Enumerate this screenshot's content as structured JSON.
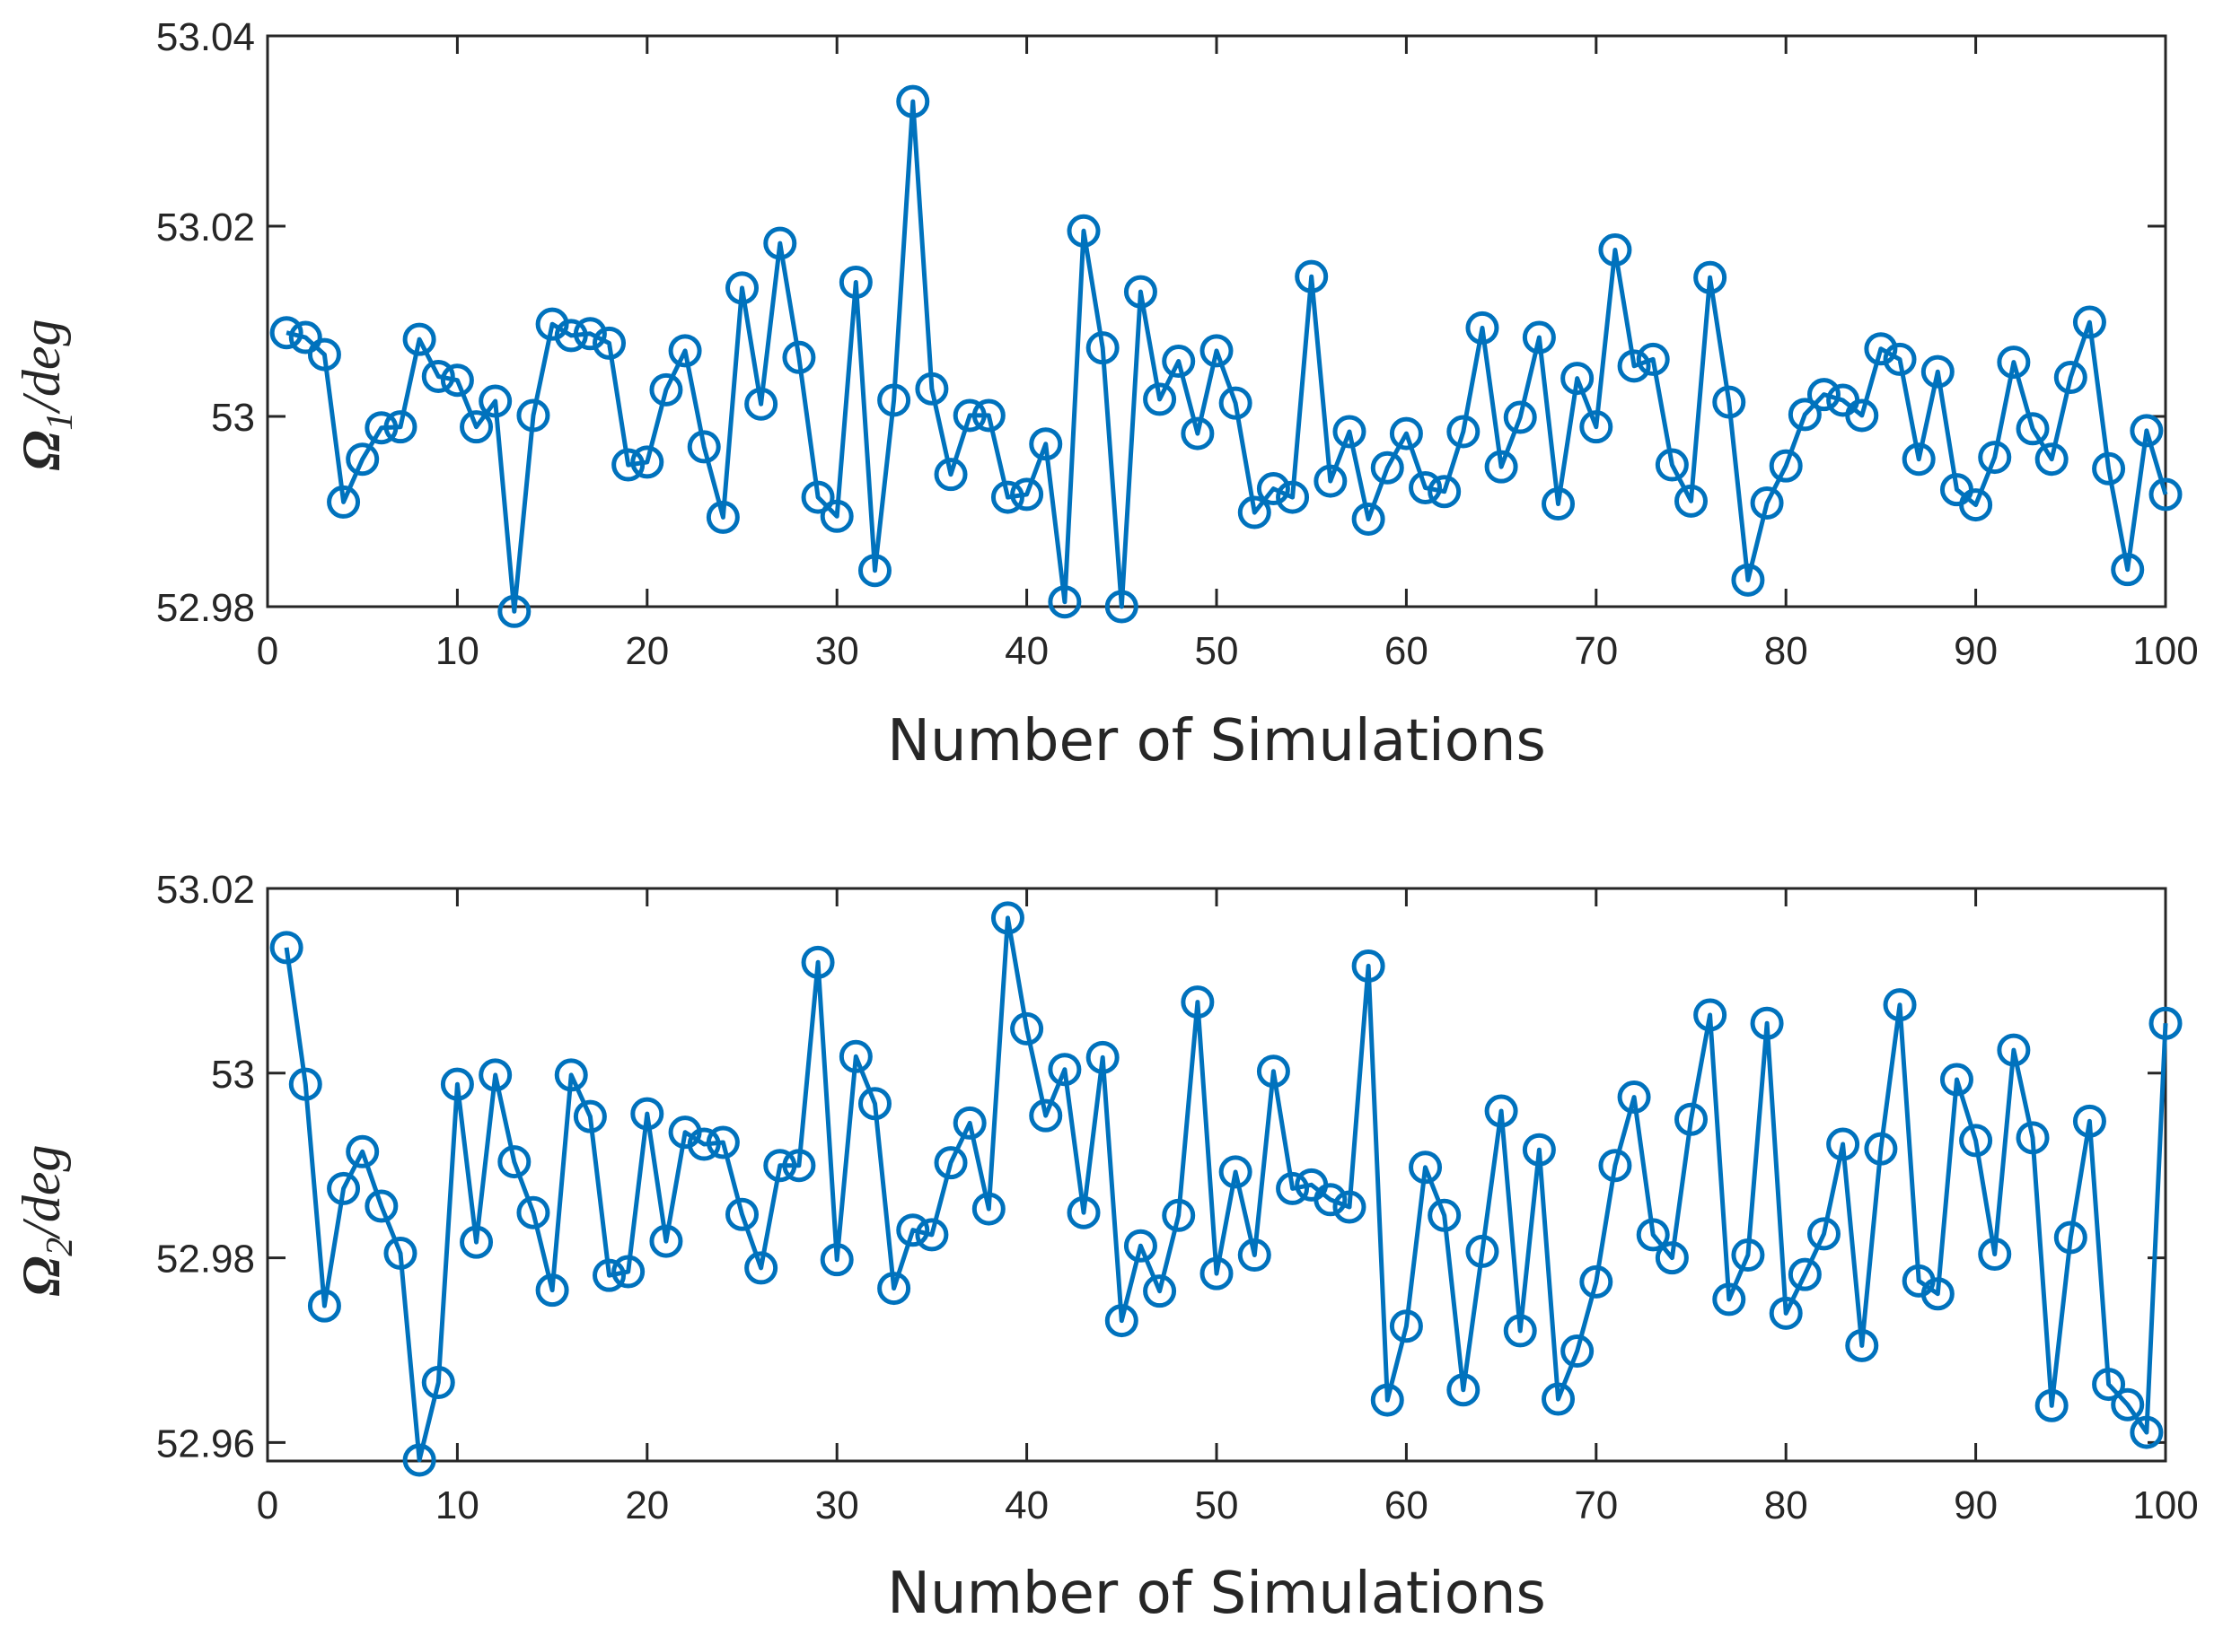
{
  "chart_data": [
    {
      "type": "line",
      "ylabel_main": "Ω",
      "ylabel_sub": "1",
      "ylabel_rest": "/deg",
      "xlabel": "Number of Simulations",
      "xlim": [
        0,
        100
      ],
      "ylim": [
        52.98,
        53.04
      ],
      "xticks": [
        0,
        10,
        20,
        30,
        40,
        50,
        60,
        70,
        80,
        90,
        100
      ],
      "yticks": [
        52.98,
        53,
        53.02,
        53.04
      ],
      "xtick_labels": [
        "0",
        "10",
        "20",
        "30",
        "40",
        "50",
        "60",
        "70",
        "80",
        "90",
        "100"
      ],
      "ytick_labels": [
        "52.98",
        "53",
        "53.02",
        "53.04"
      ],
      "color": "#0072BD",
      "marker": "circle",
      "x": [
        1,
        2,
        3,
        4,
        5,
        6,
        7,
        8,
        9,
        10,
        11,
        12,
        13,
        14,
        15,
        16,
        17,
        18,
        19,
        20,
        21,
        22,
        23,
        24,
        25,
        26,
        27,
        28,
        29,
        30,
        31,
        32,
        33,
        34,
        35,
        36,
        37,
        38,
        39,
        40,
        41,
        42,
        43,
        44,
        45,
        46,
        47,
        48,
        49,
        50,
        51,
        52,
        53,
        54,
        55,
        56,
        57,
        58,
        59,
        60,
        61,
        62,
        63,
        64,
        65,
        66,
        67,
        68,
        69,
        70,
        71,
        72,
        73,
        74,
        75,
        76,
        77,
        78,
        79,
        80,
        81,
        82,
        83,
        84,
        85,
        86,
        87,
        88,
        89,
        90,
        91,
        92,
        93,
        94,
        95,
        96,
        97,
        98,
        99,
        100
      ],
      "values": [
        53.0088,
        53.0083,
        53.0065,
        52.991,
        52.9955,
        52.9988,
        52.9989,
        53.0081,
        53.0042,
        53.0038,
        52.9989,
        53.0016,
        52.9795,
        53.0001,
        53.0097,
        53.0085,
        53.0087,
        53.0077,
        52.9949,
        52.9952,
        53.0028,
        53.0069,
        52.9968,
        52.9894,
        53.0135,
        53.0013,
        53.0182,
        53.0062,
        52.9915,
        52.9895,
        53.0141,
        52.9838,
        53.0017,
        53.0331,
        53.0029,
        52.9939,
        53.0001,
        53.0001,
        52.9915,
        52.9918,
        52.9971,
        52.9805,
        53.0195,
        53.0072,
        52.98,
        53.0131,
        53.0018,
        53.0058,
        52.9982,
        53.0069,
        53.0014,
        52.9899,
        52.9924,
        52.9915,
        53.0147,
        52.9932,
        52.9984,
        52.9892,
        52.9946,
        52.9982,
        52.9925,
        52.9921,
        52.9984,
        53.0093,
        52.9947,
        52.9999,
        53.0083,
        52.9908,
        53.004,
        52.9989,
        53.0175,
        53.0053,
        53.006,
        52.9949,
        52.9911,
        53.0146,
        53.0015,
        52.9828,
        52.9909,
        52.9948,
        53.0002,
        53.0023,
        53.0017,
        53.0001,
        53.0071,
        53.006,
        52.9955,
        53.0047,
        52.9923,
        52.9907,
        52.9957,
        53.0057,
        52.9987,
        52.9955,
        53.0041,
        53.0099,
        52.9945,
        52.9839,
        52.9985,
        52.9918
      ]
    },
    {
      "type": "line",
      "ylabel_main": "Ω",
      "ylabel_sub": "2",
      "ylabel_rest": "/deg",
      "xlabel": "Number of Simulations",
      "xlim": [
        0,
        100
      ],
      "ylim": [
        52.958,
        53.02
      ],
      "xticks": [
        0,
        10,
        20,
        30,
        40,
        50,
        60,
        70,
        80,
        90,
        100
      ],
      "yticks": [
        52.96,
        52.98,
        53,
        53.02
      ],
      "xtick_labels": [
        "0",
        "10",
        "20",
        "30",
        "40",
        "50",
        "60",
        "70",
        "80",
        "90",
        "100"
      ],
      "ytick_labels": [
        "52.96",
        "52.98",
        "53",
        "53.02"
      ],
      "color": "#0072BD",
      "marker": "circle",
      "x": [
        1,
        2,
        3,
        4,
        5,
        6,
        7,
        8,
        9,
        10,
        11,
        12,
        13,
        14,
        15,
        16,
        17,
        18,
        19,
        20,
        21,
        22,
        23,
        24,
        25,
        26,
        27,
        28,
        29,
        30,
        31,
        32,
        33,
        34,
        35,
        36,
        37,
        38,
        39,
        40,
        41,
        42,
        43,
        44,
        45,
        46,
        47,
        48,
        49,
        50,
        51,
        52,
        53,
        54,
        55,
        56,
        57,
        58,
        59,
        60,
        61,
        62,
        63,
        64,
        65,
        66,
        67,
        68,
        69,
        70,
        71,
        72,
        73,
        74,
        75,
        76,
        77,
        78,
        79,
        80,
        81,
        82,
        83,
        84,
        85,
        86,
        87,
        88,
        89,
        90,
        91,
        92,
        93,
        94,
        95,
        96,
        97,
        98,
        99,
        100
      ],
      "values": [
        53.0136,
        52.9988,
        52.9748,
        52.9875,
        52.9915,
        52.9856,
        52.9805,
        52.9581,
        52.9665,
        52.9988,
        52.9817,
        52.9998,
        52.9904,
        52.9849,
        52.9765,
        52.9998,
        52.9953,
        52.9781,
        52.9785,
        52.9956,
        52.9818,
        52.9936,
        52.9923,
        52.9925,
        52.9847,
        52.9789,
        52.99,
        52.99,
        53.012,
        52.9798,
        53.0018,
        52.9967,
        52.9767,
        52.983,
        52.9825,
        52.9903,
        52.9946,
        52.9853,
        53.0168,
        53.0048,
        52.9954,
        53.0004,
        52.9849,
        53.0017,
        52.9732,
        52.9813,
        52.9764,
        52.9846,
        53.0077,
        52.9783,
        52.9893,
        52.9803,
        53.0002,
        52.9875,
        52.9879,
        52.9863,
        52.9855,
        53.0116,
        52.9646,
        52.9726,
        52.9898,
        52.9846,
        52.9657,
        52.9807,
        52.9959,
        52.9721,
        52.9917,
        52.9647,
        52.9699,
        52.9774,
        52.99,
        52.9974,
        52.9825,
        52.98,
        52.995,
        53.0063,
        52.9755,
        52.9803,
        53.0054,
        52.974,
        52.9782,
        52.9826,
        52.9923,
        52.9705,
        52.9918,
        53.0074,
        52.9775,
        52.9761,
        52.9993,
        52.9927,
        52.9804,
        53.0025,
        52.993,
        52.964,
        52.9822,
        52.9948,
        52.9663,
        52.9641,
        52.9611,
        53.0054
      ]
    }
  ]
}
